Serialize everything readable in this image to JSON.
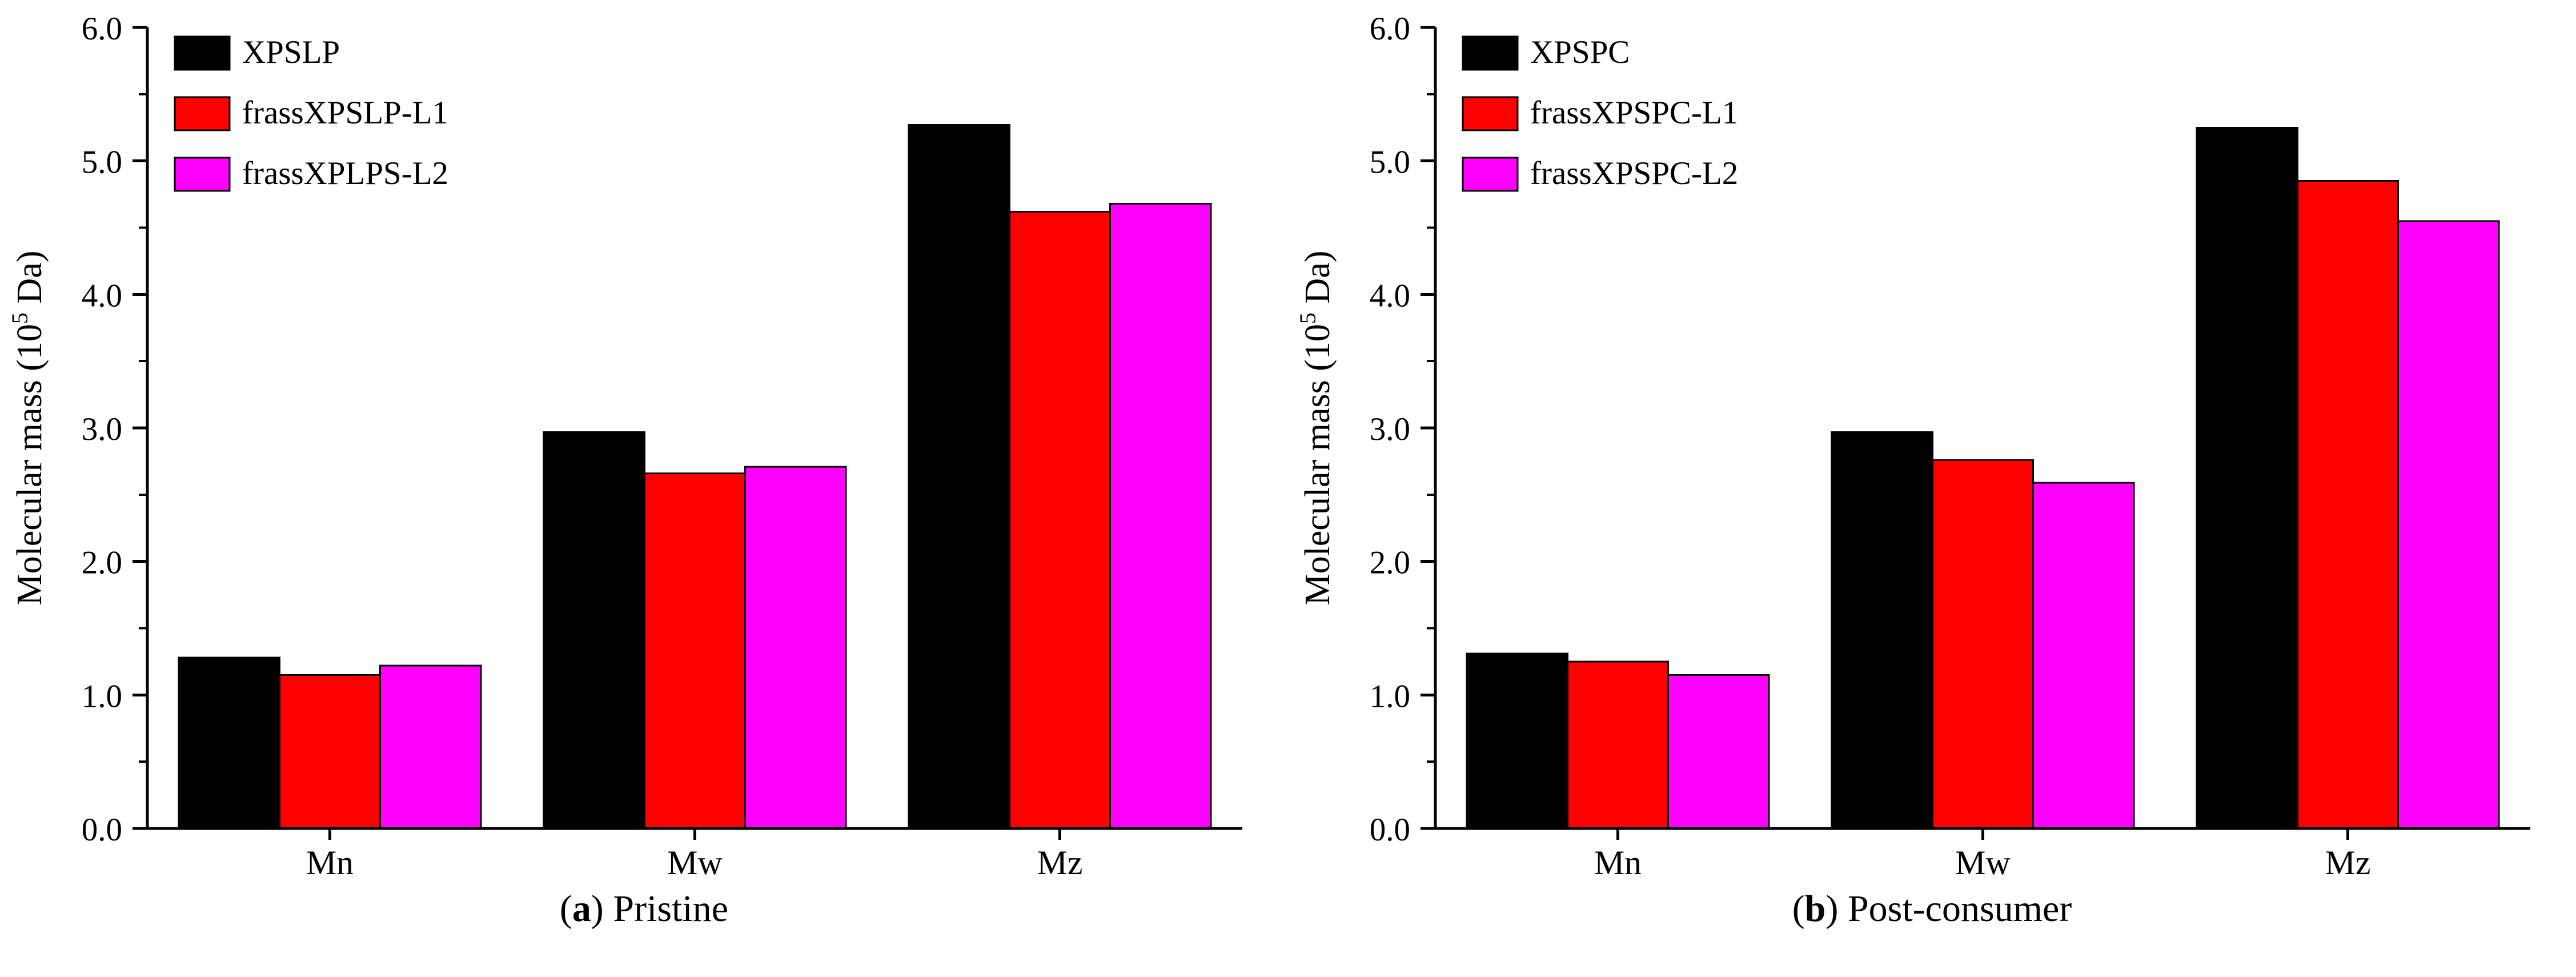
{
  "page": {
    "background": "#ffffff"
  },
  "chart_data": [
    {
      "type": "bar",
      "caption": {
        "open": "(",
        "letter": "a",
        "close": ")",
        "text": "Pristine"
      },
      "ylabel": {
        "pre": "Molecular mass (10",
        "sup": "5",
        "post": " Da)"
      },
      "ylim": [
        0.0,
        6.0
      ],
      "ytick_values": [
        0,
        1,
        2,
        3,
        4,
        5,
        6
      ],
      "yticks": [
        "0.0",
        "1.0",
        "2.0",
        "3.0",
        "4.0",
        "5.0",
        "6.0"
      ],
      "yminor_step": 0.5,
      "categories": [
        "Mn",
        "Mw",
        "Mz"
      ],
      "series": [
        {
          "name": "XPSLP",
          "color": "#000000",
          "values": [
            1.28,
            2.97,
            5.27
          ]
        },
        {
          "name": "frassXPSLP-L1",
          "color": "#FF0000",
          "values": [
            1.15,
            2.66,
            4.62
          ]
        },
        {
          "name": "frassXPLPS-L2",
          "color": "#FF00FF",
          "values": [
            1.22,
            2.71,
            4.68
          ]
        }
      ],
      "legend_position": "top-left",
      "grid": false
    },
    {
      "type": "bar",
      "caption": {
        "open": "(",
        "letter": "b",
        "close": ")",
        "text": "Post-consumer"
      },
      "ylabel": {
        "pre": "Molecular mass (10",
        "sup": "5",
        "post": " Da)"
      },
      "ylim": [
        0.0,
        6.0
      ],
      "ytick_values": [
        0,
        1,
        2,
        3,
        4,
        5,
        6
      ],
      "yticks": [
        "0.0",
        "1.0",
        "2.0",
        "3.0",
        "4.0",
        "5.0",
        "6.0"
      ],
      "yminor_step": 0.5,
      "categories": [
        "Mn",
        "Mw",
        "Mz"
      ],
      "series": [
        {
          "name": "XPSPC",
          "color": "#000000",
          "values": [
            1.31,
            2.97,
            5.25
          ]
        },
        {
          "name": "frassXPSPC-L1",
          "color": "#FF0000",
          "values": [
            1.25,
            2.76,
            4.85
          ]
        },
        {
          "name": "frassXPSPC-L2",
          "color": "#FF00FF",
          "values": [
            1.15,
            2.59,
            4.55
          ]
        }
      ],
      "legend_position": "top-left",
      "grid": false
    }
  ]
}
